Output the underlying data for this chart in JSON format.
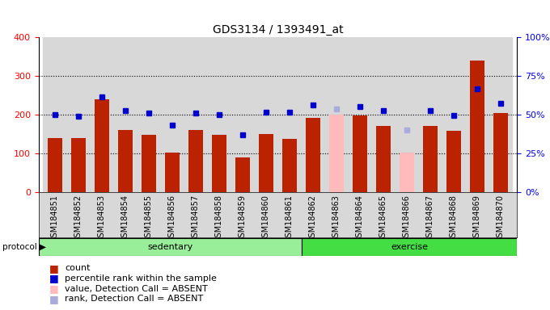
{
  "title": "GDS3134 / 1393491_at",
  "samples": [
    "GSM184851",
    "GSM184852",
    "GSM184853",
    "GSM184854",
    "GSM184855",
    "GSM184856",
    "GSM184857",
    "GSM184858",
    "GSM184859",
    "GSM184860",
    "GSM184861",
    "GSM184862",
    "GSM184863",
    "GSM184864",
    "GSM184865",
    "GSM184866",
    "GSM184867",
    "GSM184868",
    "GSM184869",
    "GSM184870"
  ],
  "counts": [
    140,
    140,
    240,
    160,
    148,
    102,
    160,
    148,
    90,
    150,
    138,
    192,
    200,
    198,
    170,
    102,
    170,
    158,
    340,
    205
  ],
  "ranks": [
    200,
    197,
    245,
    210,
    205,
    173,
    205,
    200,
    148,
    207,
    207,
    225,
    215,
    222,
    210,
    160,
    210,
    198,
    267,
    230
  ],
  "absent_mask": [
    false,
    false,
    false,
    false,
    false,
    false,
    false,
    false,
    false,
    false,
    false,
    false,
    true,
    false,
    false,
    true,
    false,
    false,
    false,
    false
  ],
  "sedentary_count": 11,
  "ylim_left": [
    0,
    400
  ],
  "ylim_right": [
    0,
    100
  ],
  "yticks_left": [
    0,
    100,
    200,
    300,
    400
  ],
  "yticks_right": [
    0,
    25,
    50,
    75,
    100
  ],
  "yticklabels_right": [
    "0%",
    "25%",
    "50%",
    "75%",
    "100%"
  ],
  "bar_color_present": "#bb2200",
  "bar_color_absent": "#ffbbbb",
  "rank_color_present": "#0000cc",
  "rank_color_absent": "#aaaadd",
  "col_bg_color": "#d8d8d8",
  "plot_bg": "#ffffff",
  "sedentary_color": "#99ee99",
  "exercise_color": "#44dd44",
  "grid_color": "#000000",
  "title_fontsize": 10,
  "tick_fontsize": 7,
  "legend_fontsize": 8
}
